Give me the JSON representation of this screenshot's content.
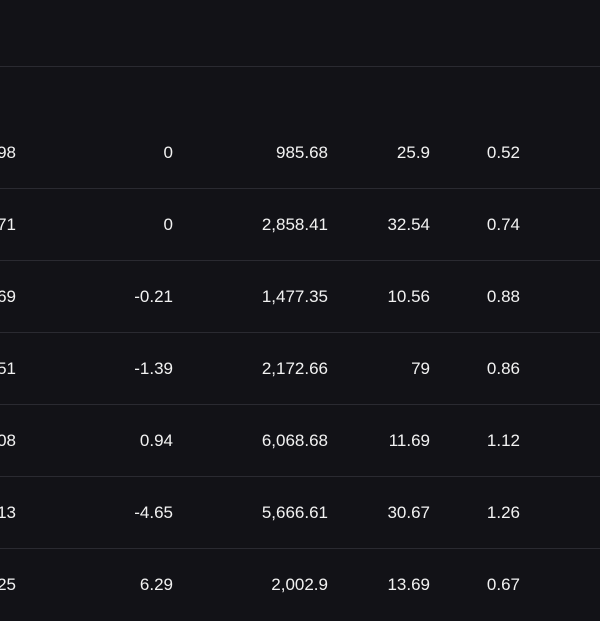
{
  "table": {
    "rows": [
      {
        "col0": "98",
        "col1": "0",
        "col2": "985.68",
        "col3": "25.9",
        "col4": "0.52"
      },
      {
        "col0": "71",
        "col1": "0",
        "col2": "2,858.41",
        "col3": "32.54",
        "col4": "0.74"
      },
      {
        "col0": "69",
        "col1": "-0.21",
        "col2": "1,477.35",
        "col3": "10.56",
        "col4": "0.88"
      },
      {
        "col0": "51",
        "col1": "-1.39",
        "col2": "2,172.66",
        "col3": "79",
        "col4": "0.86"
      },
      {
        "col0": "08",
        "col1": "0.94",
        "col2": "6,068.68",
        "col3": "11.69",
        "col4": "1.12"
      },
      {
        "col0": "13",
        "col1": "-4.65",
        "col2": "5,666.61",
        "col3": "30.67",
        "col4": "1.26"
      },
      {
        "col0": "25",
        "col1": "6.29",
        "col2": "2,002.9",
        "col3": "13.69",
        "col4": "0.67"
      }
    ]
  }
}
